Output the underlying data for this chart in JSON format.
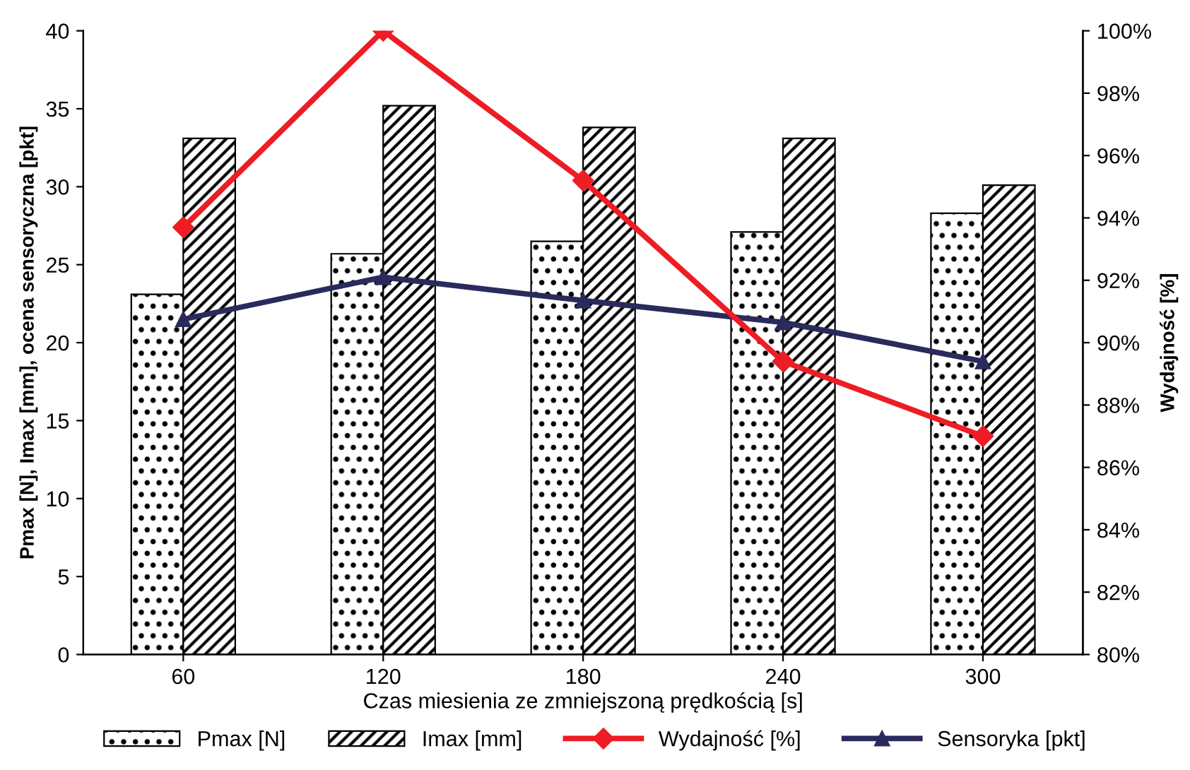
{
  "chart_data": {
    "type": "bar",
    "xlabel": "Czas miesienia ze zmniejszoną prędkością [s]",
    "ylabel": "Pmax [N], Imax [mm], ocena sensoryczna [pkt]",
    "y2label": "Wydajność [%]",
    "categories": [
      "60",
      "120",
      "180",
      "240",
      "300"
    ],
    "series": [
      {
        "name": "Pmax [N]",
        "color": "#000000",
        "values": [
          23.1,
          25.7,
          26.5,
          27.1,
          28.3
        ]
      },
      {
        "name": "Imax [mm]",
        "color": "#000000",
        "values": [
          33.1,
          35.2,
          33.8,
          33.1,
          30.1
        ]
      },
      {
        "name": "Wydajność [%]",
        "type": "line",
        "axis": "y2",
        "marker": "diamond",
        "color": "#ee1c24",
        "values": [
          93.7,
          100,
          95.2,
          89.4,
          87.0
        ]
      },
      {
        "name": "Sensoryka [pkt]",
        "type": "line",
        "marker": "triangle",
        "color": "#2b2a5c",
        "values": [
          21.5,
          24.2,
          22.7,
          21.3,
          18.8
        ]
      }
    ],
    "ylim": [
      0,
      40
    ],
    "yticks": [
      0,
      5,
      10,
      15,
      20,
      25,
      30,
      35,
      40
    ],
    "y2lim": [
      80,
      100
    ],
    "y2ticks": [
      {
        "value": 80,
        "label": "80%"
      },
      {
        "value": 82,
        "label": "82%"
      },
      {
        "value": 84,
        "label": "84%"
      },
      {
        "value": 86,
        "label": "86%"
      },
      {
        "value": 88,
        "label": "88%"
      },
      {
        "value": 90,
        "label": "90%"
      },
      {
        "value": 92,
        "label": "92%"
      },
      {
        "value": 94,
        "label": "94%"
      },
      {
        "value": 96,
        "label": "96%"
      },
      {
        "value": 98,
        "label": "98%"
      },
      {
        "value": 100,
        "label": "100%"
      }
    ],
    "grid": false,
    "legend": "bottom"
  }
}
